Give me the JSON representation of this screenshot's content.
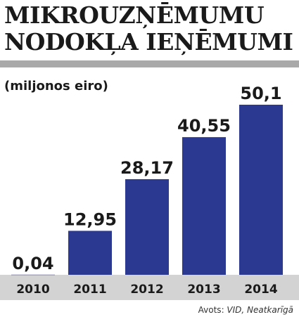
{
  "header": {
    "title_line_1": "MIKROUZŅĒMUMU",
    "title_line_2": "NODOKĻA IEŅĒMUMI"
  },
  "unit_label": "(miljonos eiro)",
  "source": {
    "prefix": "Avots: ",
    "names": "VID, Neatkarīgā"
  },
  "colors": {
    "bar": "#2b3990",
    "axis_band": "#d3d3d3",
    "title_rule": "#a9a9a9"
  },
  "chart_data": {
    "type": "bar",
    "title": "MIKROUZŅĒMUMU NODOKĻA IEŅĒMUMI",
    "ylabel": "(miljonos eiro)",
    "xlabel": "",
    "categories": [
      "2010",
      "2011",
      "2012",
      "2013",
      "2014"
    ],
    "values": [
      0.04,
      12.95,
      28.17,
      40.55,
      50.1
    ],
    "value_labels": [
      "0,04",
      "12,95",
      "28,17",
      "40,55",
      "50,1"
    ],
    "ylim": [
      0,
      53
    ],
    "grid": false,
    "legend": "none"
  }
}
